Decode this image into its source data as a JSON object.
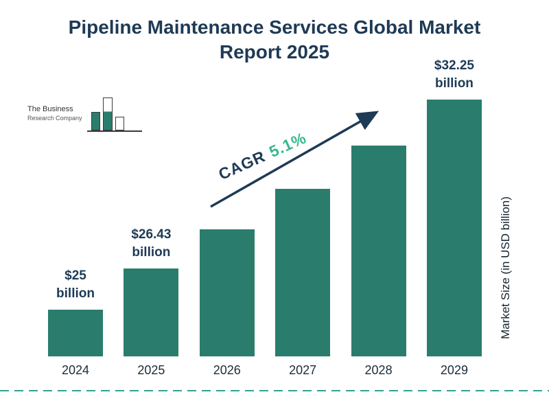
{
  "chart_data": {
    "type": "bar",
    "title": "Pipeline Maintenance Services Global Market Report 2025",
    "categories": [
      "2024",
      "2025",
      "2026",
      "2027",
      "2028",
      "2029"
    ],
    "values": [
      25,
      26.43,
      27.78,
      29.19,
      30.68,
      32.25
    ],
    "bar_labels": [
      {
        "line1": "$25",
        "line2": "billion"
      },
      {
        "line1": "$26.43",
        "line2": "billion"
      },
      null,
      null,
      null,
      {
        "line1": "$32.25",
        "line2": "billion"
      }
    ],
    "cagr_label": "CAGR",
    "cagr_value": "5.1%",
    "xlabel": "",
    "ylabel": "Market Size (in USD billion)",
    "ylim": [
      23.4,
      32.4
    ],
    "grid": false,
    "legend": false,
    "colors": {
      "bar": "#2a7d6c",
      "title": "#1e3a55",
      "accent_green": "#35b98b",
      "arrow": "#1e3a55",
      "dash_line": "#2ea392"
    }
  },
  "logo": {
    "line1": "The Business",
    "line2": "Research Company"
  }
}
